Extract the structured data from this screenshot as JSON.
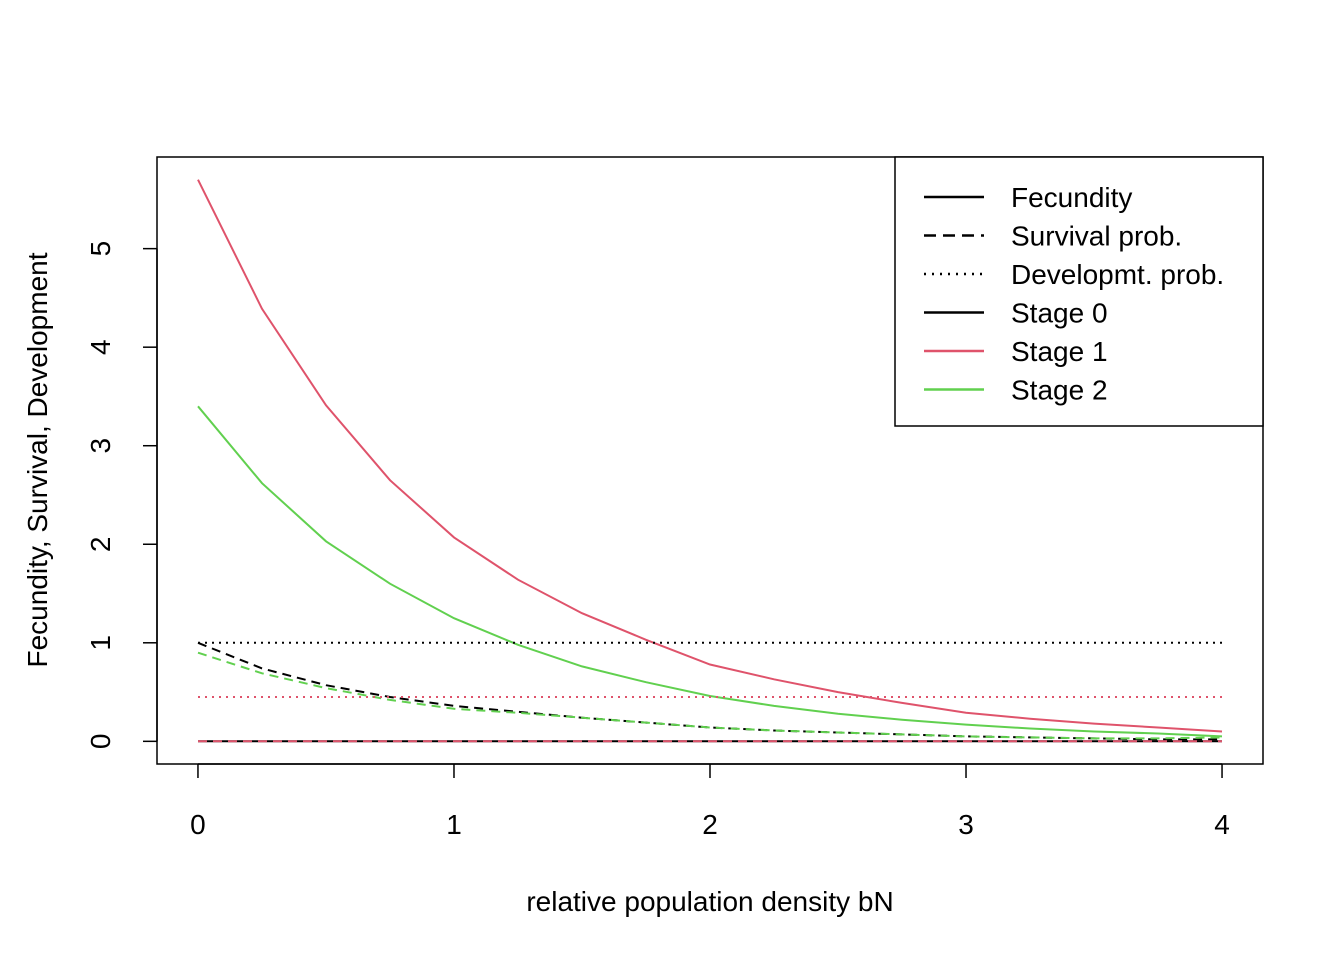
{
  "chart_data": {
    "type": "line",
    "title": "",
    "xlabel": "relative population density bN",
    "ylabel": "Fecundity, Survival, Development",
    "xlim": [
      -0.16,
      4.16
    ],
    "ylim": [
      -0.23,
      5.93
    ],
    "x_ticks": [
      0,
      1,
      2,
      3,
      4
    ],
    "y_ticks": [
      0,
      1,
      2,
      3,
      4,
      5
    ],
    "x_tick_labels": [
      "0",
      "1",
      "2",
      "3",
      "4"
    ],
    "y_tick_labels": [
      "0",
      "1",
      "2",
      "3",
      "4",
      "5"
    ],
    "x": [
      0,
      0.25,
      0.5,
      0.75,
      1,
      1.25,
      1.5,
      1.75,
      2,
      2.25,
      2.5,
      2.75,
      3,
      3.25,
      3.5,
      3.75,
      4
    ],
    "series": [
      {
        "name": "Fecundity, Stage 0",
        "measure": "Fecundity",
        "stage": "Stage 0",
        "color": "#000000",
        "dash": "solid",
        "values": [
          0,
          0,
          0,
          0,
          0,
          0,
          0,
          0,
          0,
          0,
          0,
          0,
          0,
          0,
          0,
          0,
          0
        ]
      },
      {
        "name": "Fecundity, Stage 1",
        "measure": "Fecundity",
        "stage": "Stage 1",
        "color": "#DF536B",
        "dash": "solid",
        "values": [
          5.7,
          4.39,
          3.41,
          2.65,
          2.07,
          1.64,
          1.3,
          1.03,
          0.78,
          0.63,
          0.5,
          0.39,
          0.29,
          0.23,
          0.18,
          0.14,
          0.1
        ]
      },
      {
        "name": "Fecundity, Stage 2",
        "measure": "Fecundity",
        "stage": "Stage 2",
        "color": "#61D04F",
        "dash": "solid",
        "values": [
          3.4,
          2.62,
          2.03,
          1.6,
          1.25,
          0.98,
          0.76,
          0.6,
          0.46,
          0.36,
          0.28,
          0.22,
          0.17,
          0.13,
          0.1,
          0.08,
          0.05
        ]
      },
      {
        "name": "Survival prob., Stage 0",
        "measure": "Survival prob.",
        "stage": "Stage 0",
        "color": "#000000",
        "dash": "dashed",
        "values": [
          1.0,
          0.74,
          0.57,
          0.45,
          0.36,
          0.3,
          0.24,
          0.19,
          0.14,
          0.11,
          0.09,
          0.07,
          0.05,
          0.04,
          0.03,
          0.02,
          0.02
        ]
      },
      {
        "name": "Survival prob., Stage 1",
        "measure": "Survival prob.",
        "stage": "Stage 1",
        "color": "#DF536B",
        "dash": "dashed",
        "values": [
          0,
          0,
          0,
          0,
          0,
          0,
          0,
          0,
          0,
          0,
          0,
          0,
          0,
          0,
          0,
          0,
          0
        ]
      },
      {
        "name": "Survival prob., Stage 2",
        "measure": "Survival prob.",
        "stage": "Stage 2",
        "color": "#61D04F",
        "dash": "dashed",
        "values": [
          0.9,
          0.69,
          0.54,
          0.42,
          0.33,
          0.29,
          0.24,
          0.19,
          0.14,
          0.11,
          0.09,
          0.07,
          0.05,
          0.04,
          0.03,
          0.03,
          0.04
        ]
      },
      {
        "name": "Developmt. prob., Stage 0",
        "measure": "Developmt. prob.",
        "stage": "Stage 0",
        "color": "#000000",
        "dash": "dotted",
        "values": [
          1,
          1,
          1,
          1,
          1,
          1,
          1,
          1,
          1,
          1,
          1,
          1,
          1,
          1,
          1,
          1,
          1
        ]
      },
      {
        "name": "Developmt. prob., Stage 1",
        "measure": "Developmt. prob.",
        "stage": "Stage 1",
        "color": "#DF536B",
        "dash": "dotted",
        "values": [
          0.45,
          0.45,
          0.45,
          0.45,
          0.45,
          0.45,
          0.45,
          0.45,
          0.45,
          0.45,
          0.45,
          0.45,
          0.45,
          0.45,
          0.45,
          0.45,
          0.45
        ]
      }
    ],
    "legend": {
      "position": "top-right",
      "entries": [
        {
          "label": "Fecundity",
          "color": "#000000",
          "dash": "solid"
        },
        {
          "label": "Survival prob.",
          "color": "#000000",
          "dash": "dashed"
        },
        {
          "label": "Developmt. prob.",
          "color": "#000000",
          "dash": "dotted"
        },
        {
          "label": "Stage 0",
          "color": "#000000",
          "dash": "solid"
        },
        {
          "label": "Stage 1",
          "color": "#DF536B",
          "dash": "solid"
        },
        {
          "label": "Stage 2",
          "color": "#61D04F",
          "dash": "solid"
        }
      ]
    },
    "grid": false
  }
}
